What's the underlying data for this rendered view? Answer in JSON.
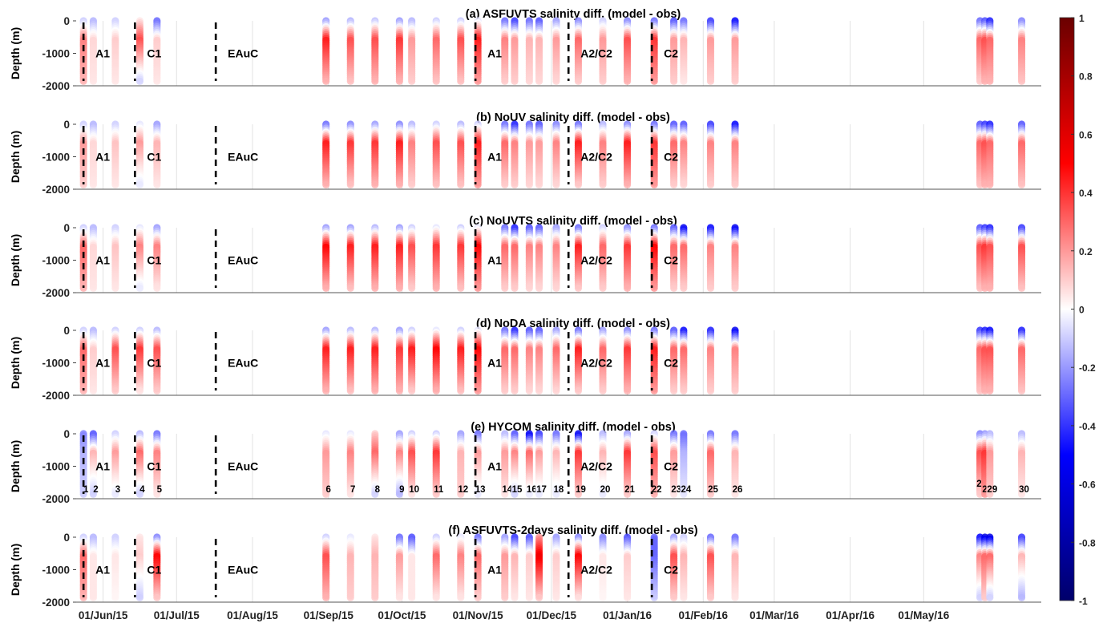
{
  "chart_data": {
    "type": "scatter",
    "description_units": {
      "x": "date",
      "y": "depth (m)",
      "color": "salinity difference (model - obs)"
    },
    "ylabel": "Depth (m)",
    "ylim": [
      -2000,
      0
    ],
    "yticks": [
      0,
      -1000,
      -2000
    ],
    "x_range": [
      "2015-05-21",
      "2016-06-18"
    ],
    "xticks": [
      {
        "date": "2015-06-01",
        "label": "01/Jun/15"
      },
      {
        "date": "2015-07-01",
        "label": "01/Jul/15"
      },
      {
        "date": "2015-08-01",
        "label": "01/Aug/15"
      },
      {
        "date": "2015-09-01",
        "label": "01/Sep/15"
      },
      {
        "date": "2015-10-01",
        "label": "01/Oct/15"
      },
      {
        "date": "2015-11-01",
        "label": "01/Nov/15"
      },
      {
        "date": "2015-12-01",
        "label": "01/Dec/15"
      },
      {
        "date": "2016-01-01",
        "label": "01/Jan/16"
      },
      {
        "date": "2016-02-01",
        "label": "01/Feb/16"
      },
      {
        "date": "2016-03-01",
        "label": "01/Mar/16"
      },
      {
        "date": "2016-04-01",
        "label": "01/Apr/16"
      },
      {
        "date": "2016-05-01",
        "label": "01/May/16"
      }
    ],
    "colorbar": {
      "min": -1,
      "max": 1,
      "ticks": [
        1,
        0.8,
        0.6,
        0.4,
        0.2,
        0,
        -0.2,
        -0.4,
        -0.6,
        -0.8,
        -1
      ],
      "colormap": "blue-white-red",
      "colors": {
        "neg_end": "#00006a",
        "neg_mid": "#0000ff",
        "zero": "#ffffff",
        "pos_mid": "#ff0000",
        "pos_end": "#6a0000"
      }
    },
    "regime_boundaries": [
      {
        "date": "2015-05-24",
        "label": "A1"
      },
      {
        "date": "2015-06-14",
        "label": "C1"
      },
      {
        "date": "2015-07-17",
        "label": "EAuC"
      },
      {
        "date": "2015-10-31",
        "label": "A1"
      },
      {
        "date": "2015-12-08",
        "label": "A2/C2"
      },
      {
        "date": "2016-01-11",
        "label": "C2"
      }
    ],
    "profiles": [
      {
        "id": "1",
        "date": "2015-05-24"
      },
      {
        "id": "2",
        "date": "2015-05-28"
      },
      {
        "id": "3",
        "date": "2015-06-06"
      },
      {
        "id": "4",
        "date": "2015-06-16"
      },
      {
        "id": "5",
        "date": "2015-06-23"
      },
      {
        "id": "6",
        "date": "2015-08-31"
      },
      {
        "id": "7",
        "date": "2015-09-10"
      },
      {
        "id": "8",
        "date": "2015-09-20"
      },
      {
        "id": "9",
        "date": "2015-09-30"
      },
      {
        "id": "10",
        "date": "2015-10-05"
      },
      {
        "id": "11",
        "date": "2015-10-15"
      },
      {
        "id": "12",
        "date": "2015-10-25"
      },
      {
        "id": "13",
        "date": "2015-11-01"
      },
      {
        "id": "14",
        "date": "2015-11-12"
      },
      {
        "id": "15",
        "date": "2015-11-16"
      },
      {
        "id": "16",
        "date": "2015-11-22"
      },
      {
        "id": "17",
        "date": "2015-11-26"
      },
      {
        "id": "18",
        "date": "2015-12-03"
      },
      {
        "id": "19",
        "date": "2015-12-12"
      },
      {
        "id": "20",
        "date": "2015-12-22"
      },
      {
        "id": "21",
        "date": "2016-01-01"
      },
      {
        "id": "22",
        "date": "2016-01-12"
      },
      {
        "id": "23",
        "date": "2016-01-20"
      },
      {
        "id": "24",
        "date": "2016-01-24"
      },
      {
        "id": "25",
        "date": "2016-02-04"
      },
      {
        "id": "26",
        "date": "2016-02-14"
      },
      {
        "id": "27",
        "date": "2016-05-24"
      },
      {
        "id": "28",
        "date": "2016-05-26"
      },
      {
        "id": "29",
        "date": "2016-05-28"
      },
      {
        "id": "30",
        "date": "2016-06-10"
      }
    ],
    "panels": [
      {
        "title": "(a) ASFUVTS salinity diff. (model - obs)",
        "show_profile_ids": false,
        "values": [
          [
            -0.1,
            0.25,
            0.15
          ],
          [
            -0.15,
            0.08,
            0.05
          ],
          [
            -0.1,
            0.1,
            0.05
          ],
          [
            0.05,
            0.35,
            -0.1
          ],
          [
            -0.3,
            0.1,
            0.05
          ],
          [
            -0.2,
            0.45,
            0.15
          ],
          [
            -0.15,
            0.35,
            0.12
          ],
          [
            -0.12,
            0.35,
            0.15
          ],
          [
            -0.2,
            0.4,
            0.15
          ],
          [
            -0.15,
            0.2,
            0.1
          ],
          [
            -0.1,
            0.3,
            0.12
          ],
          [
            -0.1,
            0.35,
            0.12
          ],
          [
            -0.05,
            0.45,
            0.2
          ],
          [
            -0.3,
            0.25,
            0.1
          ],
          [
            -0.4,
            0.2,
            0.1
          ],
          [
            -0.3,
            0.15,
            0.08
          ],
          [
            -0.35,
            0.15,
            0.08
          ],
          [
            -0.2,
            0.2,
            0.08
          ],
          [
            -0.25,
            0.3,
            0.1
          ],
          [
            -0.1,
            0.2,
            0.1
          ],
          [
            -0.25,
            0.35,
            0.15
          ],
          [
            -0.3,
            0.4,
            0.2
          ],
          [
            -0.35,
            0.2,
            0.1
          ],
          [
            -0.3,
            0.15,
            0.05
          ],
          [
            -0.4,
            0.2,
            0.1
          ],
          [
            -0.5,
            0.2,
            0.1
          ],
          [
            -0.3,
            0.3,
            0.1
          ],
          [
            -0.35,
            0.35,
            0.15
          ],
          [
            -0.45,
            0.3,
            0.15
          ],
          [
            -0.25,
            0.25,
            0.12
          ]
        ]
      },
      {
        "title": "(b) NoUV salinity diff. (model - obs)",
        "show_profile_ids": false,
        "values": [
          [
            -0.1,
            0.2,
            0.1
          ],
          [
            -0.15,
            0.08,
            0.05
          ],
          [
            -0.1,
            0.12,
            0.05
          ],
          [
            -0.05,
            0.2,
            -0.05
          ],
          [
            -0.2,
            0.15,
            0.05
          ],
          [
            -0.3,
            0.45,
            0.15
          ],
          [
            -0.25,
            0.4,
            0.12
          ],
          [
            -0.2,
            0.4,
            0.15
          ],
          [
            -0.25,
            0.45,
            0.15
          ],
          [
            -0.15,
            0.25,
            0.1
          ],
          [
            -0.1,
            0.35,
            0.12
          ],
          [
            -0.15,
            0.35,
            0.12
          ],
          [
            -0.1,
            0.45,
            0.2
          ],
          [
            -0.3,
            0.3,
            0.1
          ],
          [
            -0.45,
            0.25,
            0.1
          ],
          [
            -0.3,
            0.2,
            0.08
          ],
          [
            -0.35,
            0.2,
            0.08
          ],
          [
            -0.25,
            0.25,
            0.08
          ],
          [
            -0.3,
            0.45,
            0.1
          ],
          [
            -0.15,
            0.25,
            0.1
          ],
          [
            -0.25,
            0.45,
            0.15
          ],
          [
            -0.3,
            0.4,
            0.2
          ],
          [
            -0.35,
            0.3,
            0.1
          ],
          [
            -0.35,
            0.25,
            0.08
          ],
          [
            -0.4,
            0.25,
            0.1
          ],
          [
            -0.5,
            0.25,
            0.1
          ],
          [
            -0.35,
            0.3,
            0.12
          ],
          [
            -0.4,
            0.35,
            0.15
          ],
          [
            -0.45,
            0.3,
            0.15
          ],
          [
            -0.35,
            0.3,
            0.12
          ]
        ]
      },
      {
        "title": "(c) NoUVTS salinity diff. (model - obs)",
        "show_profile_ids": false,
        "values": [
          [
            -0.1,
            0.3,
            0.15
          ],
          [
            -0.15,
            0.08,
            0.05
          ],
          [
            -0.1,
            0.12,
            0.05
          ],
          [
            -0.05,
            0.25,
            -0.05
          ],
          [
            -0.2,
            0.25,
            0.05
          ],
          [
            -0.2,
            0.5,
            0.15
          ],
          [
            -0.2,
            0.45,
            0.12
          ],
          [
            -0.15,
            0.45,
            0.15
          ],
          [
            -0.2,
            0.45,
            0.15
          ],
          [
            -0.1,
            0.35,
            0.1
          ],
          [
            -0.05,
            0.4,
            0.15
          ],
          [
            -0.1,
            0.4,
            0.12
          ],
          [
            -0.05,
            0.5,
            0.2
          ],
          [
            -0.3,
            0.3,
            0.1
          ],
          [
            -0.45,
            0.3,
            0.1
          ],
          [
            -0.35,
            0.25,
            0.08
          ],
          [
            -0.35,
            0.25,
            0.08
          ],
          [
            -0.2,
            0.25,
            0.08
          ],
          [
            -0.3,
            0.45,
            0.1
          ],
          [
            -0.1,
            0.3,
            0.1
          ],
          [
            -0.25,
            0.4,
            0.15
          ],
          [
            -0.3,
            0.5,
            0.2
          ],
          [
            -0.35,
            0.3,
            0.1
          ],
          [
            -0.55,
            0.3,
            0.1
          ],
          [
            -0.5,
            0.25,
            0.1
          ],
          [
            -0.55,
            0.25,
            0.1
          ],
          [
            -0.35,
            0.35,
            0.12
          ],
          [
            -0.4,
            0.4,
            0.15
          ],
          [
            -0.45,
            0.35,
            0.15
          ],
          [
            -0.4,
            0.35,
            0.12
          ]
        ]
      },
      {
        "title": "(d) NoDA salinity diff. (model - obs)",
        "show_profile_ids": false,
        "values": [
          [
            -0.1,
            0.3,
            0.15
          ],
          [
            -0.15,
            0.1,
            0.05
          ],
          [
            -0.1,
            0.35,
            0.1
          ],
          [
            -0.1,
            0.4,
            0.05
          ],
          [
            -0.15,
            0.35,
            0.1
          ],
          [
            -0.2,
            0.45,
            0.15
          ],
          [
            -0.15,
            0.45,
            0.12
          ],
          [
            -0.15,
            0.45,
            0.15
          ],
          [
            -0.2,
            0.4,
            0.15
          ],
          [
            -0.1,
            0.45,
            0.1
          ],
          [
            -0.05,
            0.5,
            0.15
          ],
          [
            -0.1,
            0.45,
            0.12
          ],
          [
            -0.05,
            0.5,
            0.2
          ],
          [
            -0.3,
            0.3,
            0.1
          ],
          [
            -0.45,
            0.3,
            0.1
          ],
          [
            -0.35,
            0.25,
            0.08
          ],
          [
            -0.35,
            0.25,
            0.08
          ],
          [
            -0.2,
            0.3,
            0.08
          ],
          [
            -0.3,
            0.45,
            0.1
          ],
          [
            -0.2,
            0.3,
            0.1
          ],
          [
            -0.25,
            0.4,
            0.15
          ],
          [
            -0.3,
            0.45,
            0.2
          ],
          [
            -0.35,
            0.3,
            0.1
          ],
          [
            -0.5,
            0.3,
            0.1
          ],
          [
            -0.45,
            0.25,
            0.1
          ],
          [
            -0.55,
            0.25,
            0.1
          ],
          [
            -0.4,
            0.3,
            0.12
          ],
          [
            -0.45,
            0.35,
            0.15
          ],
          [
            -0.5,
            0.35,
            0.15
          ],
          [
            -0.45,
            0.3,
            0.12
          ]
        ]
      },
      {
        "title": "(e) HYCOM salinity diff. (model - obs)",
        "show_profile_ids": true,
        "values": [
          [
            -0.25,
            -0.15,
            -0.1
          ],
          [
            -0.35,
            0.15,
            -0.1
          ],
          [
            -0.1,
            0.2,
            -0.05
          ],
          [
            -0.15,
            0.3,
            -0.1
          ],
          [
            -0.3,
            0.25,
            0.05
          ],
          [
            -0.05,
            0.2,
            0.1
          ],
          [
            -0.05,
            0.25,
            0.05
          ],
          [
            0.1,
            0.3,
            -0.1
          ],
          [
            -0.2,
            0.25,
            -0.15
          ],
          [
            -0.1,
            0.35,
            0.05
          ],
          [
            -0.1,
            0.4,
            0.1
          ],
          [
            -0.2,
            0.15,
            0.1
          ],
          [
            -0.3,
            0.2,
            -0.05
          ],
          [
            -0.15,
            0.2,
            0.05
          ],
          [
            -0.35,
            0.25,
            -0.1
          ],
          [
            -0.55,
            0.3,
            -0.05
          ],
          [
            -0.4,
            0.2,
            -0.05
          ],
          [
            -0.3,
            0.15,
            -0.05
          ],
          [
            -0.55,
            0.4,
            0.1
          ],
          [
            -0.15,
            0.15,
            -0.05
          ],
          [
            -0.2,
            0.4,
            0.1
          ],
          [
            -0.1,
            0.35,
            0.15
          ],
          [
            -0.3,
            0.2,
            0.05
          ],
          [
            -0.3,
            -0.15,
            -0.05
          ],
          [
            -0.3,
            0.3,
            0.1
          ],
          [
            -0.3,
            0.15,
            0.05
          ],
          [
            -0.25,
            0.35,
            0.1
          ],
          [
            -0.2,
            0.4,
            0.2
          ],
          [
            -0.15,
            0.2,
            0.1
          ],
          [
            -0.15,
            0.15,
            0.05
          ]
        ]
      },
      {
        "title": "(f) ASFUVTS-2days salinity diff. (model - obs)",
        "show_profile_ids": false,
        "values": [
          [
            -0.1,
            0.3,
            0.15
          ],
          [
            -0.15,
            0.05,
            0.05
          ],
          [
            -0.1,
            0.05,
            0.02
          ],
          [
            0.05,
            0.1,
            -0.1
          ],
          [
            -0.25,
            0.5,
            0.1
          ],
          [
            -0.1,
            0.35,
            0.15
          ],
          [
            -0.05,
            0.15,
            0.1
          ],
          [
            0.05,
            0.15,
            0.1
          ],
          [
            -0.3,
            0.2,
            0.05
          ],
          [
            -0.35,
            0.05,
            0.05
          ],
          [
            -0.1,
            0.3,
            0.05
          ],
          [
            -0.05,
            0.25,
            0.05
          ],
          [
            -0.3,
            0.3,
            0.1
          ],
          [
            -0.2,
            0.2,
            0.1
          ],
          [
            -0.4,
            0.15,
            0.05
          ],
          [
            -0.35,
            0.1,
            0.05
          ],
          [
            0.2,
            0.55,
            0.1
          ],
          [
            -0.2,
            0.1,
            0.05
          ],
          [
            -0.25,
            0.5,
            0.05
          ],
          [
            -0.25,
            0.05,
            0.02
          ],
          [
            -0.35,
            0.1,
            0.05
          ],
          [
            -0.3,
            -0.3,
            -0.1
          ],
          [
            -0.2,
            0.35,
            0.1
          ],
          [
            -0.1,
            0.15,
            0.05
          ],
          [
            -0.3,
            0.35,
            0.1
          ],
          [
            -0.3,
            0.15,
            0.05
          ],
          [
            -0.5,
            0.25,
            -0.1
          ],
          [
            -0.6,
            0.3,
            0.1
          ],
          [
            -0.6,
            0.3,
            -0.1
          ],
          [
            -0.4,
            0.15,
            -0.15
          ]
        ]
      }
    ]
  }
}
